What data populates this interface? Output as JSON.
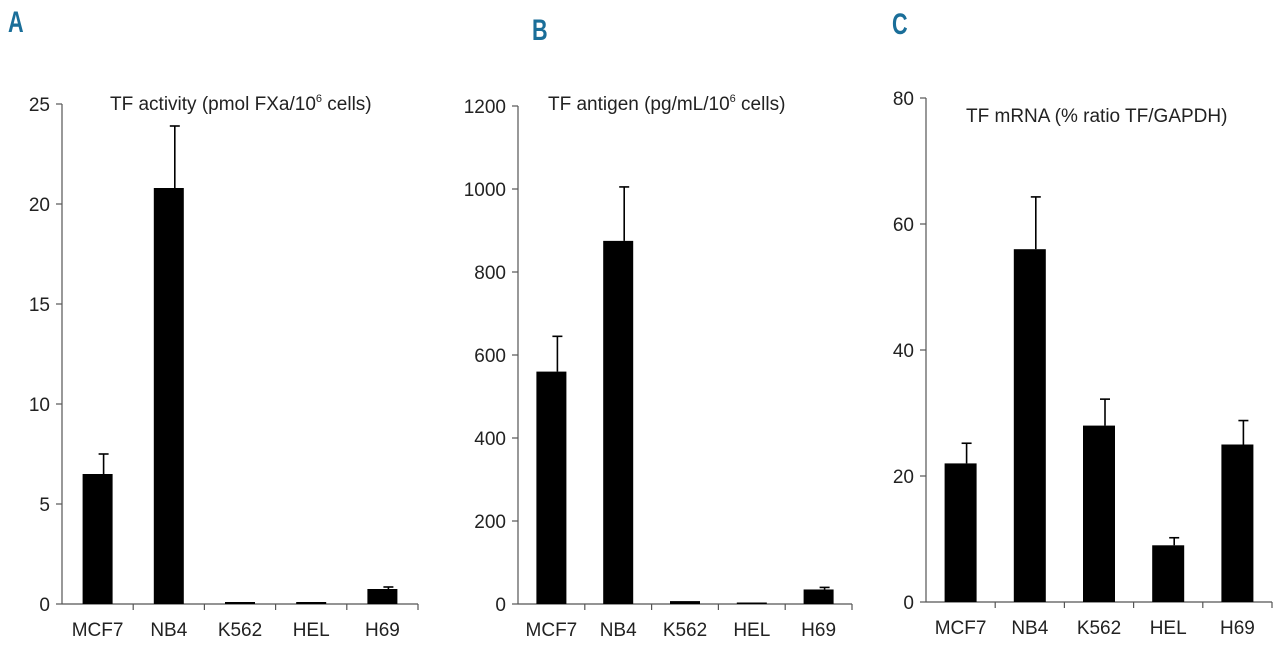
{
  "panel_color": "#1a6e99",
  "bar_color": "#000000",
  "chart_data": [
    {
      "type": "bar",
      "panel": "A",
      "title": "TF activity (pmol FXa/10",
      "title_sup": "6",
      "title_suffix": " cells)",
      "categories": [
        "MCF7",
        "NB4",
        "K562",
        "HEL",
        "H69"
      ],
      "values": [
        6.5,
        20.8,
        0.1,
        0.1,
        0.75
      ],
      "errors": [
        1.0,
        3.1,
        0,
        0,
        0.1
      ],
      "ylim": [
        0,
        25
      ],
      "yticks": [
        0,
        5,
        10,
        15,
        20,
        25
      ]
    },
    {
      "type": "bar",
      "panel": "B",
      "title": "TF antigen (pg/mL/10",
      "title_sup": "6",
      "title_suffix": " cells)",
      "categories": [
        "MCF7",
        "NB4",
        "K562",
        "HEL",
        "H69"
      ],
      "values": [
        560,
        875,
        7,
        3,
        35
      ],
      "errors": [
        85,
        130,
        0,
        0,
        5
      ],
      "ylim": [
        0,
        1200
      ],
      "yticks": [
        0,
        200,
        400,
        600,
        800,
        1000,
        1200
      ]
    },
    {
      "type": "bar",
      "panel": "C",
      "title": "TF mRNA (% ratio TF/GAPDH)",
      "title_sup": "",
      "title_suffix": "",
      "categories": [
        "MCF7",
        "NB4",
        "K562",
        "HEL",
        "H69"
      ],
      "values": [
        22,
        56,
        28,
        9,
        25
      ],
      "errors": [
        3.2,
        8.3,
        4.2,
        1.2,
        3.8
      ],
      "ylim": [
        0,
        80
      ],
      "yticks": [
        0,
        20,
        40,
        60,
        80
      ]
    }
  ]
}
